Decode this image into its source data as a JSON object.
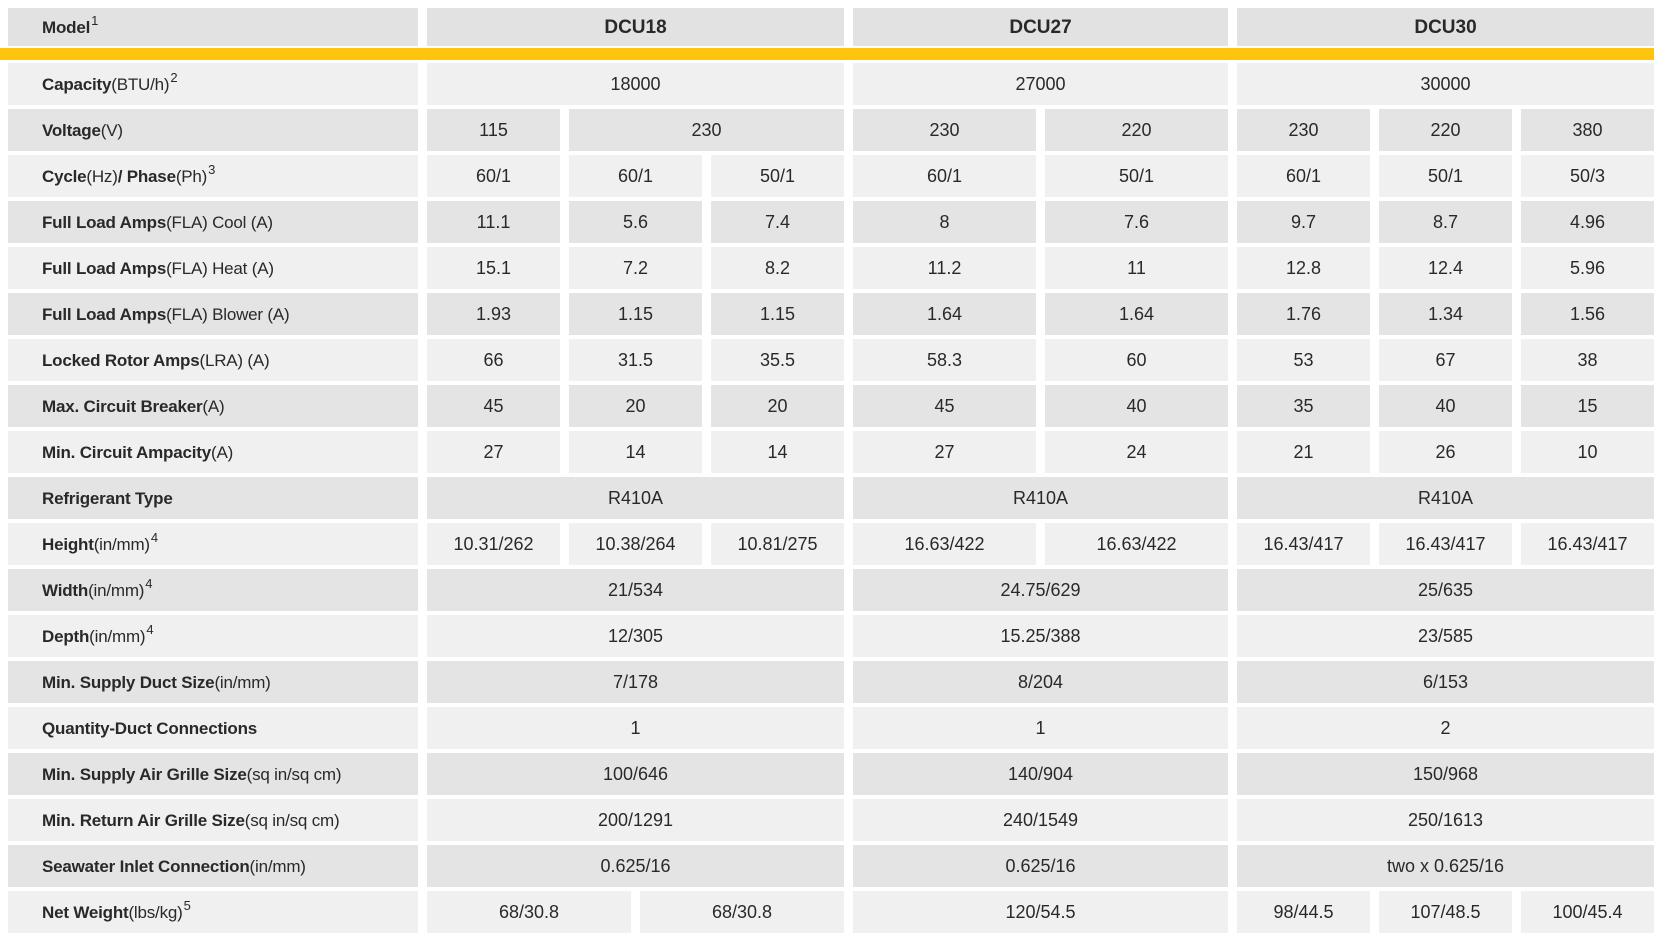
{
  "colors": {
    "accent": "#ffc40d",
    "header_bg": "#e3e2e2",
    "row_light": "#f1f0f0",
    "row_dark": "#e5e4e4",
    "text": "#2b2828",
    "page_bg": "#ffffff"
  },
  "table": {
    "header": {
      "model_label": [
        {
          "t": "Model",
          "b": true
        },
        {
          "t": "1",
          "sup": true
        }
      ],
      "models": [
        {
          "name": "DCU18",
          "span": 6
        },
        {
          "name": "DCU27",
          "span": 4
        },
        {
          "name": "DCU30",
          "span": 6
        }
      ]
    },
    "rows": [
      {
        "label": [
          {
            "t": "Capacity",
            "b": true
          },
          {
            "t": " (BTU/h)"
          },
          {
            "t": "2",
            "sup": true
          }
        ],
        "cells": [
          {
            "v": "18000",
            "s": 6
          },
          {
            "v": "27000",
            "s": 4
          },
          {
            "v": "30000",
            "s": 6
          }
        ]
      },
      {
        "label": [
          {
            "t": "Voltage",
            "b": true
          },
          {
            "t": " (V)"
          }
        ],
        "cells": [
          {
            "v": "115",
            "s": 2
          },
          {
            "v": "230",
            "s": 4
          },
          {
            "v": "230",
            "s": 2
          },
          {
            "v": "220",
            "s": 2
          },
          {
            "v": "230",
            "s": 2
          },
          {
            "v": "220",
            "s": 2
          },
          {
            "v": "380",
            "s": 2
          }
        ]
      },
      {
        "label": [
          {
            "t": "Cycle",
            "b": true
          },
          {
            "t": " (Hz) "
          },
          {
            "t": "/ Phase",
            "b": true
          },
          {
            "t": " (Ph)"
          },
          {
            "t": "3",
            "sup": true
          }
        ],
        "cells": [
          {
            "v": "60/1",
            "s": 2
          },
          {
            "v": "60/1",
            "s": 2
          },
          {
            "v": "50/1",
            "s": 2
          },
          {
            "v": "60/1",
            "s": 2
          },
          {
            "v": "50/1",
            "s": 2
          },
          {
            "v": "60/1",
            "s": 2
          },
          {
            "v": "50/1",
            "s": 2
          },
          {
            "v": "50/3",
            "s": 2
          }
        ]
      },
      {
        "label": [
          {
            "t": "Full Load Amps",
            "b": true
          },
          {
            "t": " (FLA) Cool (A)"
          }
        ],
        "cells": [
          {
            "v": "11.1",
            "s": 2
          },
          {
            "v": "5.6",
            "s": 2
          },
          {
            "v": "7.4",
            "s": 2
          },
          {
            "v": "8",
            "s": 2
          },
          {
            "v": "7.6",
            "s": 2
          },
          {
            "v": "9.7",
            "s": 2
          },
          {
            "v": "8.7",
            "s": 2
          },
          {
            "v": "4.96",
            "s": 2
          }
        ]
      },
      {
        "label": [
          {
            "t": "Full Load Amps",
            "b": true
          },
          {
            "t": "(FLA) Heat (A)"
          }
        ],
        "cells": [
          {
            "v": "15.1",
            "s": 2
          },
          {
            "v": "7.2",
            "s": 2
          },
          {
            "v": "8.2",
            "s": 2
          },
          {
            "v": "11.2",
            "s": 2
          },
          {
            "v": "11",
            "s": 2
          },
          {
            "v": "12.8",
            "s": 2
          },
          {
            "v": "12.4",
            "s": 2
          },
          {
            "v": "5.96",
            "s": 2
          }
        ]
      },
      {
        "label": [
          {
            "t": "Full Load Amps",
            "b": true
          },
          {
            "t": " (FLA) Blower (A)"
          }
        ],
        "cells": [
          {
            "v": "1.93",
            "s": 2
          },
          {
            "v": "1.15",
            "s": 2
          },
          {
            "v": "1.15",
            "s": 2
          },
          {
            "v": "1.64",
            "s": 2
          },
          {
            "v": "1.64",
            "s": 2
          },
          {
            "v": "1.76",
            "s": 2
          },
          {
            "v": "1.34",
            "s": 2
          },
          {
            "v": "1.56",
            "s": 2
          }
        ]
      },
      {
        "label": [
          {
            "t": "Locked Rotor Amps",
            "b": true
          },
          {
            "t": " (LRA) (A)"
          }
        ],
        "cells": [
          {
            "v": "66",
            "s": 2
          },
          {
            "v": "31.5",
            "s": 2
          },
          {
            "v": "35.5",
            "s": 2
          },
          {
            "v": "58.3",
            "s": 2
          },
          {
            "v": "60",
            "s": 2
          },
          {
            "v": "53",
            "s": 2
          },
          {
            "v": "67",
            "s": 2
          },
          {
            "v": "38",
            "s": 2
          }
        ]
      },
      {
        "label": [
          {
            "t": "Max. Circuit Breaker",
            "b": true
          },
          {
            "t": " (A)"
          }
        ],
        "cells": [
          {
            "v": "45",
            "s": 2
          },
          {
            "v": "20",
            "s": 2
          },
          {
            "v": "20",
            "s": 2
          },
          {
            "v": "45",
            "s": 2
          },
          {
            "v": "40",
            "s": 2
          },
          {
            "v": "35",
            "s": 2
          },
          {
            "v": "40",
            "s": 2
          },
          {
            "v": "15",
            "s": 2
          }
        ]
      },
      {
        "label": [
          {
            "t": "Min. Circuit Ampacity",
            "b": true
          },
          {
            "t": " (A)"
          }
        ],
        "cells": [
          {
            "v": "27",
            "s": 2
          },
          {
            "v": "14",
            "s": 2
          },
          {
            "v": "14",
            "s": 2
          },
          {
            "v": "27",
            "s": 2
          },
          {
            "v": "24",
            "s": 2
          },
          {
            "v": "21",
            "s": 2
          },
          {
            "v": "26",
            "s": 2
          },
          {
            "v": "10",
            "s": 2
          }
        ]
      },
      {
        "label": [
          {
            "t": "Refrigerant Type",
            "b": true
          }
        ],
        "cells": [
          {
            "v": "R410A",
            "s": 6
          },
          {
            "v": "R410A",
            "s": 4
          },
          {
            "v": "R410A",
            "s": 6
          }
        ]
      },
      {
        "label": [
          {
            "t": "Height",
            "b": true
          },
          {
            "t": " (in/mm)"
          },
          {
            "t": "4",
            "sup": true
          }
        ],
        "cells": [
          {
            "v": "10.31/262",
            "s": 2
          },
          {
            "v": "10.38/264",
            "s": 2
          },
          {
            "v": "10.81/275",
            "s": 2
          },
          {
            "v": "16.63/422",
            "s": 2
          },
          {
            "v": "16.63/422",
            "s": 2
          },
          {
            "v": "16.43/417",
            "s": 2
          },
          {
            "v": "16.43/417",
            "s": 2
          },
          {
            "v": "16.43/417",
            "s": 2
          }
        ]
      },
      {
        "label": [
          {
            "t": "Width",
            "b": true
          },
          {
            "t": " (in/mm)"
          },
          {
            "t": "4",
            "sup": true
          }
        ],
        "cells": [
          {
            "v": "21/534",
            "s": 6
          },
          {
            "v": "24.75/629",
            "s": 4
          },
          {
            "v": "25/635",
            "s": 6
          }
        ]
      },
      {
        "label": [
          {
            "t": "Depth",
            "b": true
          },
          {
            "t": " (in/mm)"
          },
          {
            "t": "4",
            "sup": true
          }
        ],
        "cells": [
          {
            "v": "12/305",
            "s": 6
          },
          {
            "v": "15.25/388",
            "s": 4
          },
          {
            "v": "23/585",
            "s": 6
          }
        ]
      },
      {
        "label": [
          {
            "t": "Min. Supply Duct Size",
            "b": true
          },
          {
            "t": " (in/mm)"
          }
        ],
        "cells": [
          {
            "v": "7/178",
            "s": 6
          },
          {
            "v": "8/204",
            "s": 4
          },
          {
            "v": "6/153",
            "s": 6
          }
        ]
      },
      {
        "label": [
          {
            "t": "Quantity-Duct Connections",
            "b": true
          }
        ],
        "cells": [
          {
            "v": "1",
            "s": 6
          },
          {
            "v": "1",
            "s": 4
          },
          {
            "v": "2",
            "s": 6
          }
        ]
      },
      {
        "label": [
          {
            "t": "Min. Supply Air Grille Size",
            "b": true
          },
          {
            "t": " (sq in/sq cm)"
          }
        ],
        "cells": [
          {
            "v": "100/646",
            "s": 6
          },
          {
            "v": "140/904",
            "s": 4
          },
          {
            "v": "150/968",
            "s": 6
          }
        ]
      },
      {
        "label": [
          {
            "t": "Min. Return Air Grille Size",
            "b": true
          },
          {
            "t": " (sq in/sq cm)"
          }
        ],
        "cells": [
          {
            "v": "200/1291",
            "s": 6
          },
          {
            "v": "240/1549",
            "s": 4
          },
          {
            "v": "250/1613",
            "s": 6
          }
        ]
      },
      {
        "label": [
          {
            "t": "Seawater Inlet Connection",
            "b": true
          },
          {
            "t": " (in/mm)"
          }
        ],
        "cells": [
          {
            "v": "0.625/16",
            "s": 6
          },
          {
            "v": "0.625/16",
            "s": 4
          },
          {
            "v": "two x 0.625/16",
            "s": 6
          }
        ]
      },
      {
        "label": [
          {
            "t": "Net Weight",
            "b": true
          },
          {
            "t": " (lbs/kg)"
          },
          {
            "t": "5",
            "sup": true
          }
        ],
        "cells": [
          {
            "v": "68/30.8",
            "s": 3
          },
          {
            "v": "68/30.8",
            "s": 3
          },
          {
            "v": "120/54.5",
            "s": 4
          },
          {
            "v": "98/44.5",
            "s": 2
          },
          {
            "v": "107/48.5",
            "s": 2
          },
          {
            "v": "100/45.4",
            "s": 2
          }
        ]
      }
    ]
  }
}
